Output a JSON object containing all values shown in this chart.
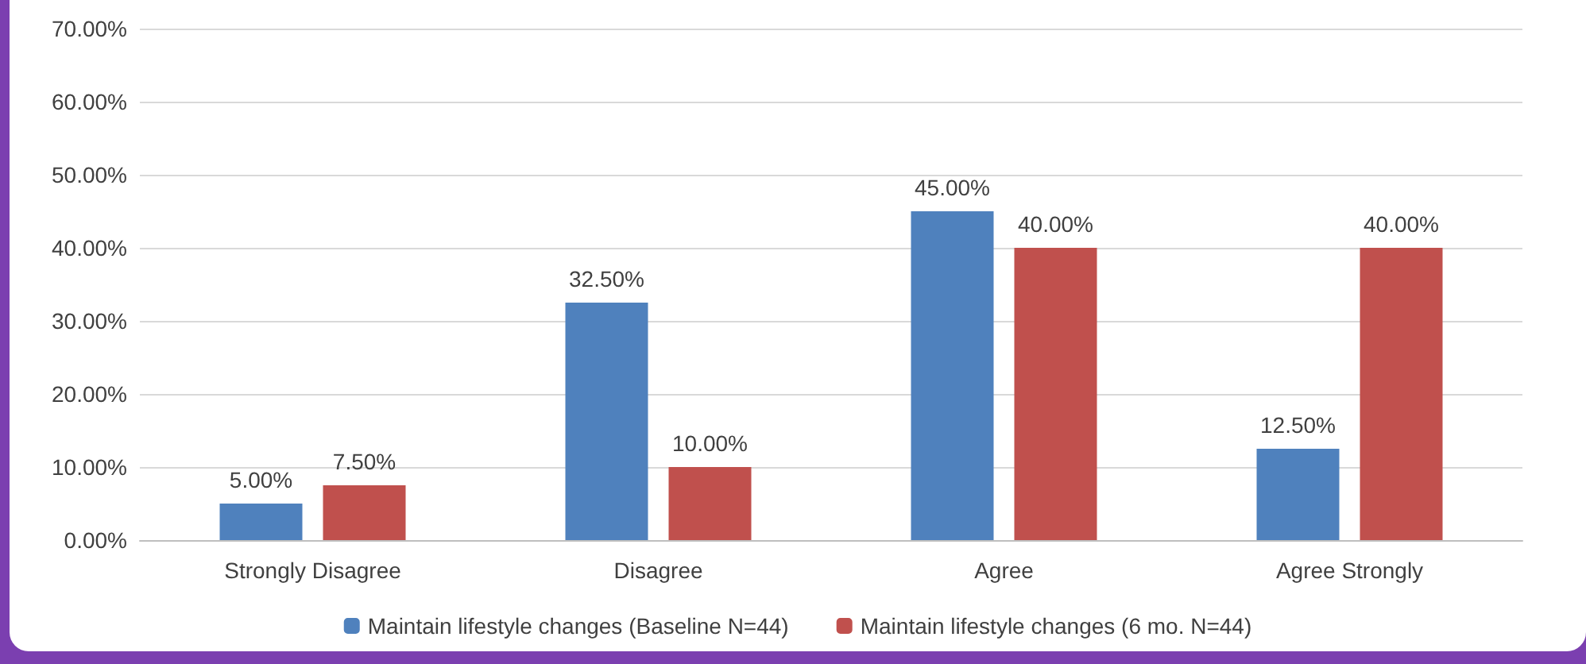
{
  "chart_data": {
    "type": "bar",
    "categories": [
      "Strongly Disagree",
      "Disagree",
      "Agree",
      "Agree Strongly"
    ],
    "series": [
      {
        "name": "Maintain lifestyle changes (Baseline N=44)",
        "color": "#4f81bd",
        "values": [
          5,
          32.5,
          45,
          12.5
        ],
        "value_labels": [
          "5.00%",
          "32.50%",
          "45.00%",
          "12.50%"
        ]
      },
      {
        "name": "Maintain lifestyle changes (6 mo. N=44)",
        "color": "#c0504d",
        "values": [
          7.5,
          10,
          40,
          40
        ],
        "value_labels": [
          "7.50%",
          "10.00%",
          "40.00%",
          "40.00%"
        ]
      }
    ],
    "ylim": [
      0,
      70
    ],
    "yticks": [
      {
        "value": 0,
        "label": "0.00%"
      },
      {
        "value": 10,
        "label": "10.00%"
      },
      {
        "value": 20,
        "label": "20.00%"
      },
      {
        "value": 30,
        "label": "30.00%"
      },
      {
        "value": 40,
        "label": "40.00%"
      },
      {
        "value": 50,
        "label": "50.00%"
      },
      {
        "value": 60,
        "label": "60.00%"
      },
      {
        "value": 70,
        "label": "70.00%"
      }
    ],
    "grid": "y",
    "legend": "bottom"
  }
}
